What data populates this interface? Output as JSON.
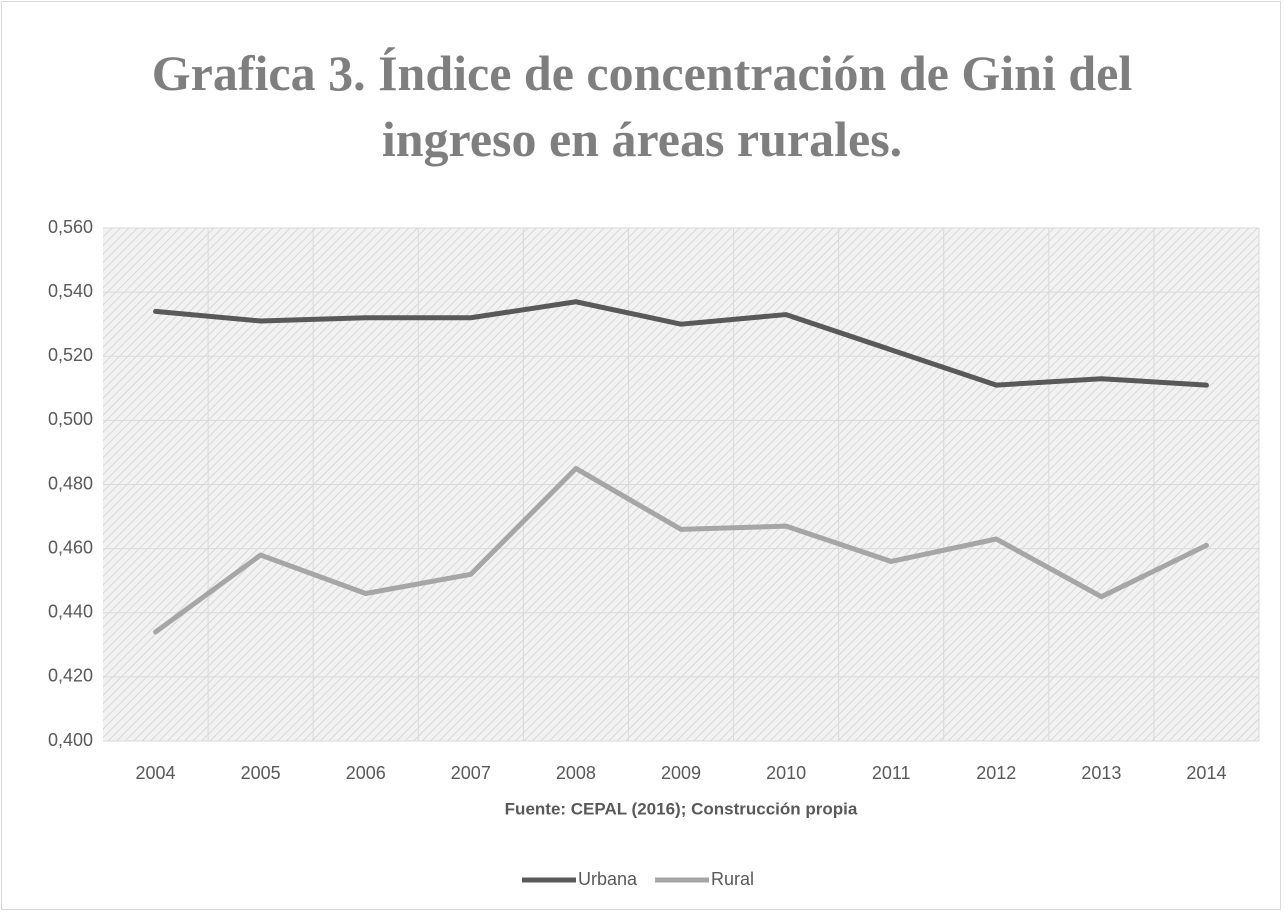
{
  "chart_data": {
    "type": "line",
    "title": "Grafica 3. Índice de concentración de Gini del ingreso en áreas rurales.",
    "x_label": "Fuente: CEPAL (2016); Construcción propia",
    "categories": [
      "2004",
      "2005",
      "2006",
      "2007",
      "2008",
      "2009",
      "2010",
      "2011",
      "2012",
      "2013",
      "2014"
    ],
    "series": [
      {
        "name": "Urbana",
        "color": "#595959",
        "values": [
          0.534,
          0.531,
          0.532,
          0.532,
          0.537,
          0.53,
          0.533,
          0.522,
          0.511,
          0.513,
          0.511
        ]
      },
      {
        "name": "Rural",
        "color": "#a6a6a6",
        "values": [
          0.434,
          0.458,
          0.446,
          0.452,
          0.485,
          0.466,
          0.467,
          0.456,
          0.463,
          0.445,
          0.461
        ]
      }
    ],
    "ylim": [
      0.4,
      0.56
    ],
    "yticks": [
      {
        "value": 0.4,
        "label": "0,400"
      },
      {
        "value": 0.42,
        "label": "0,420"
      },
      {
        "value": 0.44,
        "label": "0,440"
      },
      {
        "value": 0.46,
        "label": "0,460"
      },
      {
        "value": 0.48,
        "label": "0,480"
      },
      {
        "value": 0.5,
        "label": "0,500"
      },
      {
        "value": 0.52,
        "label": "0,520"
      },
      {
        "value": 0.54,
        "label": "0,540"
      },
      {
        "value": 0.56,
        "label": "0,560"
      }
    ],
    "grid": true,
    "legend": "bottom"
  }
}
